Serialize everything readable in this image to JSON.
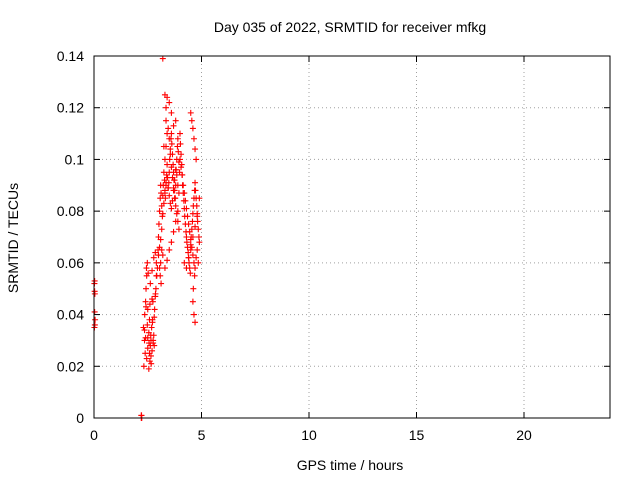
{
  "chart_data": {
    "type": "scatter",
    "title": "Day 035 of 2022, SRMTID for receiver mfkg",
    "xlabel": "GPS time / hours",
    "ylabel": "SRMTID / TECUs",
    "xlim": [
      0,
      24
    ],
    "ylim": [
      0,
      0.14
    ],
    "xticks": [
      0,
      5,
      10,
      15,
      20
    ],
    "yticks": [
      0,
      0.02,
      0.04,
      0.06,
      0.08,
      0.1,
      0.12,
      0.14
    ],
    "xtick_labels": [
      "0",
      "5",
      "10",
      "15",
      "20"
    ],
    "ytick_labels": [
      "0",
      "0.02",
      "0.04",
      "0.06",
      "0.08",
      "0.1",
      "0.12",
      "0.14"
    ],
    "grid": true,
    "marker": "plus",
    "marker_color": "#ff0000",
    "series": [
      {
        "x": [
          0.02,
          0.03,
          0.04,
          0.03,
          0.05,
          0.04,
          0.02,
          0.03,
          2.2,
          2.2,
          2.22,
          2.21,
          2.3,
          2.35,
          2.4,
          2.42,
          2.45,
          2.38,
          2.32,
          2.36,
          2.44,
          2.48,
          2.52,
          2.5,
          2.55,
          2.58,
          2.6,
          2.62,
          2.65,
          2.68,
          2.7,
          2.72,
          2.75,
          2.78,
          2.8,
          2.82,
          2.85,
          2.88,
          2.9,
          2.55,
          2.6,
          2.65,
          2.7,
          2.75,
          2.5,
          2.45,
          2.4,
          2.35,
          2.62,
          2.7,
          2.78,
          2.85,
          2.9,
          2.95,
          3.0,
          2.42,
          2.48,
          2.56,
          2.64,
          2.72,
          2.8,
          2.66,
          2.58,
          2.5,
          2.74,
          2.86,
          2.92,
          2.98,
          3.0,
          3.02,
          3.05,
          3.08,
          3.1,
          3.12,
          3.15,
          3.18,
          3.2,
          3.22,
          3.25,
          3.28,
          3.3,
          3.32,
          3.35,
          3.38,
          3.4,
          3.42,
          3.45,
          3.48,
          3.5,
          3.52,
          3.55,
          3.58,
          3.6,
          3.62,
          3.65,
          3.68,
          3.7,
          3.72,
          3.75,
          3.78,
          3.8,
          3.82,
          3.85,
          3.88,
          3.9,
          3.92,
          3.95,
          3.98,
          3.05,
          3.1,
          3.15,
          3.2,
          3.25,
          3.3,
          3.35,
          3.4,
          3.45,
          3.5,
          3.55,
          3.6,
          3.65,
          3.7,
          3.75,
          3.8,
          3.85,
          3.9,
          3.95,
          3.1,
          3.2,
          3.3,
          3.4,
          3.5,
          3.6,
          3.7,
          3.8,
          3.9,
          3.3,
          3.35,
          3.4,
          3.45,
          3.5,
          3.55,
          3.6,
          3.65,
          3.7,
          3.75,
          3.8,
          3.85,
          3.9,
          3.95,
          3.35,
          3.4,
          3.5,
          3.6,
          3.7,
          3.8,
          4.0,
          4.02,
          4.05,
          4.08,
          4.1,
          4.12,
          4.15,
          4.18,
          4.2,
          4.22,
          4.25,
          4.28,
          4.3,
          4.32,
          4.35,
          4.38,
          4.4,
          4.42,
          4.45,
          4.48,
          4.5,
          4.52,
          4.55,
          4.58,
          4.6,
          4.62,
          4.65,
          4.68,
          4.7,
          4.72,
          4.75,
          4.78,
          4.8,
          4.82,
          4.85,
          4.88,
          4.9,
          4.0,
          4.05,
          4.1,
          4.15,
          4.2,
          4.25,
          4.3,
          4.35,
          4.4,
          4.45,
          4.5,
          4.55,
          4.6,
          4.65,
          4.7,
          4.75,
          4.8,
          4.85,
          4.2,
          4.3,
          4.4,
          4.5,
          4.6,
          4.7,
          4.8,
          4.9,
          4.5,
          4.55,
          4.6,
          4.65,
          4.7,
          4.75,
          4.6,
          4.65,
          4.7,
          4.62,
          4.68,
          3.2,
          3.3,
          3.25,
          3.35,
          3.15,
          3.05,
          3.0,
          3.08,
          3.12
        ],
        "y": [
          0.052,
          0.049,
          0.048,
          0.041,
          0.038,
          0.036,
          0.035,
          0.053,
          0.0,
          0.001,
          0.0,
          0.001,
          0.035,
          0.03,
          0.045,
          0.05,
          0.055,
          0.025,
          0.02,
          0.04,
          0.058,
          0.06,
          0.056,
          0.042,
          0.033,
          0.038,
          0.044,
          0.028,
          0.03,
          0.035,
          0.046,
          0.037,
          0.03,
          0.032,
          0.039,
          0.042,
          0.047,
          0.05,
          0.055,
          0.019,
          0.022,
          0.024,
          0.026,
          0.029,
          0.027,
          0.023,
          0.031,
          0.034,
          0.052,
          0.057,
          0.062,
          0.064,
          0.06,
          0.058,
          0.063,
          0.043,
          0.036,
          0.029,
          0.032,
          0.038,
          0.028,
          0.021,
          0.025,
          0.031,
          0.045,
          0.048,
          0.055,
          0.065,
          0.07,
          0.075,
          0.08,
          0.085,
          0.09,
          0.087,
          0.082,
          0.078,
          0.086,
          0.09,
          0.095,
          0.092,
          0.088,
          0.085,
          0.09,
          0.094,
          0.098,
          0.093,
          0.089,
          0.091,
          0.095,
          0.1,
          0.104,
          0.108,
          0.11,
          0.106,
          0.102,
          0.098,
          0.095,
          0.092,
          0.088,
          0.085,
          0.09,
          0.096,
          0.1,
          0.105,
          0.108,
          0.103,
          0.099,
          0.095,
          0.066,
          0.069,
          0.073,
          0.079,
          0.083,
          0.087,
          0.091,
          0.093,
          0.089,
          0.086,
          0.083,
          0.081,
          0.084,
          0.088,
          0.092,
          0.096,
          0.094,
          0.09,
          0.087,
          0.06,
          0.063,
          0.058,
          0.061,
          0.065,
          0.068,
          0.072,
          0.076,
          0.08,
          0.1,
          0.105,
          0.11,
          0.112,
          0.108,
          0.102,
          0.097,
          0.093,
          0.089,
          0.085,
          0.082,
          0.079,
          0.076,
          0.073,
          0.12,
          0.124,
          0.122,
          0.118,
          0.113,
          0.115,
          0.11,
          0.106,
          0.102,
          0.098,
          0.094,
          0.09,
          0.087,
          0.084,
          0.081,
          0.078,
          0.075,
          0.072,
          0.07,
          0.068,
          0.066,
          0.064,
          0.062,
          0.06,
          0.058,
          0.056,
          0.067,
          0.07,
          0.073,
          0.076,
          0.079,
          0.082,
          0.085,
          0.088,
          0.091,
          0.088,
          0.085,
          0.082,
          0.079,
          0.076,
          0.073,
          0.07,
          0.068,
          0.1,
          0.097,
          0.094,
          0.09,
          0.087,
          0.084,
          0.081,
          0.078,
          0.075,
          0.072,
          0.069,
          0.066,
          0.063,
          0.06,
          0.058,
          0.062,
          0.065,
          0.06,
          0.06,
          0.058,
          0.062,
          0.065,
          0.07,
          0.074,
          0.078,
          0.085,
          0.118,
          0.115,
          0.112,
          0.108,
          0.104,
          0.1,
          0.045,
          0.04,
          0.037,
          0.05,
          0.055,
          0.139,
          0.125,
          0.105,
          0.115,
          0.065,
          0.058,
          0.063,
          0.055,
          0.052
        ]
      }
    ]
  }
}
